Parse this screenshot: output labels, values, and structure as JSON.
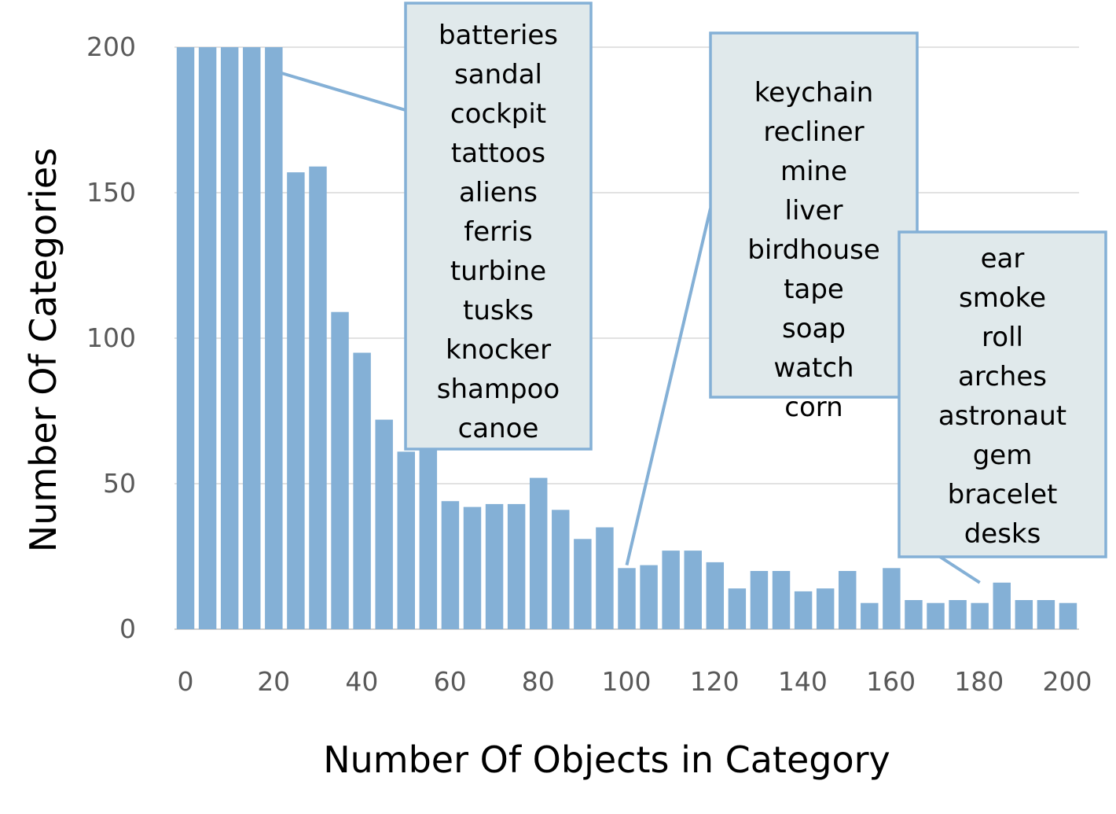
{
  "chart_data": {
    "type": "bar",
    "xlabel": "Number Of Objects in Category",
    "ylabel": "Number Of Categories",
    "xlim": [
      0,
      200
    ],
    "ylim": [
      0,
      200
    ],
    "x_ticks": [
      "0",
      "20",
      "40",
      "60",
      "80",
      "100",
      "120",
      "140",
      "160",
      "180",
      "200"
    ],
    "y_ticks": [
      "0",
      "50",
      "100",
      "150",
      "200"
    ],
    "grid": true,
    "bar_color": "#84b0d6",
    "x": [
      5,
      10,
      15,
      20,
      25,
      30,
      35,
      40,
      45,
      50,
      55,
      60,
      65,
      70,
      75,
      80,
      85,
      90,
      95,
      100,
      105,
      110,
      115,
      120,
      125,
      130,
      135,
      140,
      145,
      150,
      155,
      160,
      165,
      170,
      175,
      180,
      185,
      190,
      195,
      200,
      205
    ],
    "values": [
      200,
      200,
      200,
      200,
      200,
      157,
      159,
      109,
      95,
      72,
      61,
      66,
      44,
      42,
      43,
      43,
      52,
      41,
      31,
      35,
      21,
      22,
      27,
      27,
      23,
      14,
      20,
      20,
      13,
      14,
      20,
      9,
      21,
      10,
      9,
      10,
      9,
      16,
      10,
      10,
      9
    ],
    "annotations": [
      {
        "id": "a1",
        "x": 25,
        "y": 200,
        "labels": [
          "batteries",
          "sandal",
          "cockpit",
          "tattoos",
          "aliens",
          "ferris",
          "turbine",
          "tusks",
          "knocker",
          "shampoo",
          "canoe"
        ]
      },
      {
        "id": "a2",
        "x": 105,
        "y": 22,
        "labels": [
          "keychain",
          "recliner",
          "mine",
          "liver",
          "birdhouse",
          "tape",
          "soap",
          "watch",
          "corn"
        ]
      },
      {
        "id": "a3",
        "x": 185,
        "y": 16,
        "labels": [
          "ear",
          "smoke",
          "roll",
          "arches",
          "astronaut",
          "gem",
          "bracelet",
          "desks"
        ]
      }
    ],
    "callout_fill": "#e0e9eb",
    "callout_border": "#84b0d6"
  }
}
